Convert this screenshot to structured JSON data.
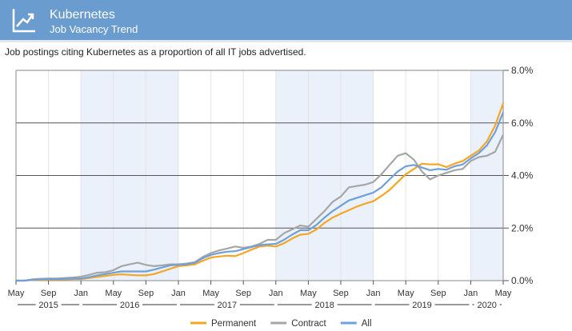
{
  "header": {
    "title": "Kubernetes",
    "subtitle": "Job Vacancy Trend",
    "icon": "trend-chart-icon"
  },
  "description": "Job postings citing Kubernetes as a proportion of all IT jobs advertised.",
  "colors": {
    "header_bg": "#6a9ccf",
    "shade": "#eaf1fb",
    "permanent": "#f5a623",
    "contract": "#a6a6a6",
    "all": "#6fa0d8"
  },
  "chart_data": {
    "type": "line",
    "x": [
      "2015-05",
      "2015-06",
      "2015-07",
      "2015-08",
      "2015-09",
      "2015-10",
      "2015-11",
      "2015-12",
      "2016-01",
      "2016-02",
      "2016-03",
      "2016-04",
      "2016-05",
      "2016-06",
      "2016-07",
      "2016-08",
      "2016-09",
      "2016-10",
      "2016-11",
      "2016-12",
      "2017-01",
      "2017-02",
      "2017-03",
      "2017-04",
      "2017-05",
      "2017-06",
      "2017-07",
      "2017-08",
      "2017-09",
      "2017-10",
      "2017-11",
      "2017-12",
      "2018-01",
      "2018-02",
      "2018-03",
      "2018-04",
      "2018-05",
      "2018-06",
      "2018-07",
      "2018-08",
      "2018-09",
      "2018-10",
      "2018-11",
      "2018-12",
      "2019-01",
      "2019-02",
      "2019-03",
      "2019-04",
      "2019-05",
      "2019-06",
      "2019-07",
      "2019-08",
      "2019-09",
      "2019-10",
      "2019-11",
      "2019-12",
      "2020-01",
      "2020-02",
      "2020-03",
      "2020-04",
      "2020-05"
    ],
    "series": [
      {
        "name": "Permanent",
        "color": "#f5a623",
        "values": [
          0.0,
          0.0,
          0.02,
          0.03,
          0.04,
          0.04,
          0.05,
          0.06,
          0.06,
          0.1,
          0.14,
          0.18,
          0.22,
          0.24,
          0.22,
          0.2,
          0.2,
          0.25,
          0.35,
          0.45,
          0.55,
          0.58,
          0.62,
          0.75,
          0.88,
          0.92,
          0.95,
          0.93,
          1.05,
          1.18,
          1.3,
          1.33,
          1.3,
          1.42,
          1.6,
          1.75,
          1.78,
          1.95,
          2.2,
          2.4,
          2.55,
          2.68,
          2.82,
          2.93,
          3.02,
          3.22,
          3.45,
          3.75,
          4.05,
          4.25,
          4.45,
          4.42,
          4.43,
          4.32,
          4.45,
          4.55,
          4.75,
          4.95,
          5.3,
          5.9,
          6.75
        ]
      },
      {
        "name": "Contract",
        "color": "#a6a6a6",
        "values": [
          0.0,
          0.0,
          0.05,
          0.07,
          0.08,
          0.08,
          0.1,
          0.12,
          0.15,
          0.22,
          0.3,
          0.32,
          0.4,
          0.55,
          0.62,
          0.68,
          0.6,
          0.55,
          0.58,
          0.62,
          0.62,
          0.65,
          0.7,
          0.9,
          1.05,
          1.15,
          1.22,
          1.3,
          1.25,
          1.3,
          1.4,
          1.55,
          1.55,
          1.8,
          1.95,
          2.1,
          2.05,
          2.35,
          2.65,
          3.0,
          3.2,
          3.55,
          3.6,
          3.65,
          3.75,
          4.05,
          4.4,
          4.75,
          4.85,
          4.6,
          4.15,
          3.85,
          4.0,
          4.1,
          4.2,
          4.25,
          4.55,
          4.7,
          4.75,
          4.9,
          5.55
        ]
      },
      {
        "name": "All",
        "color": "#6fa0d8",
        "values": [
          0.0,
          0.0,
          0.03,
          0.05,
          0.06,
          0.06,
          0.07,
          0.08,
          0.08,
          0.13,
          0.2,
          0.25,
          0.3,
          0.35,
          0.35,
          0.35,
          0.35,
          0.42,
          0.5,
          0.58,
          0.6,
          0.62,
          0.68,
          0.85,
          0.98,
          1.05,
          1.1,
          1.12,
          1.2,
          1.28,
          1.35,
          1.38,
          1.4,
          1.55,
          1.75,
          1.92,
          1.92,
          2.12,
          2.4,
          2.65,
          2.85,
          3.05,
          3.15,
          3.25,
          3.35,
          3.55,
          3.85,
          4.15,
          4.35,
          4.4,
          4.3,
          4.2,
          4.25,
          4.22,
          4.35,
          4.42,
          4.65,
          4.85,
          5.15,
          5.65,
          6.4
        ]
      }
    ],
    "ylim": [
      0,
      8
    ],
    "y_ticks": [
      "0.0%",
      "2.0%",
      "4.0%",
      "6.0%",
      "8.0%"
    ],
    "y_tick_values": [
      0,
      2,
      4,
      6,
      8
    ],
    "x_tick_labels": [
      "May",
      "Sep",
      "Jan",
      "May",
      "Sep",
      "Jan",
      "May",
      "Sep",
      "Jan",
      "May",
      "Sep",
      "Jan",
      "May",
      "Sep",
      "Jan",
      "May",
      "Sep",
      "Jan",
      "May"
    ],
    "year_labels": [
      "2015",
      "2016",
      "2017",
      "2018",
      "2019",
      "2020"
    ],
    "shaded_years": [
      "2016",
      "2018",
      "2020"
    ],
    "grid": true,
    "legend_position": "bottom-center"
  }
}
